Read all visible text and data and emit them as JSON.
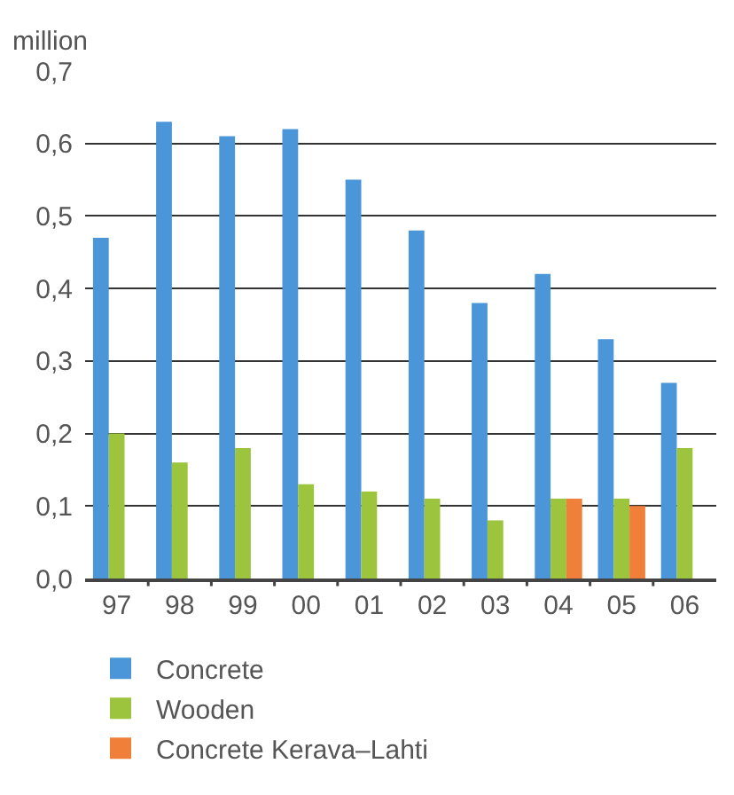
{
  "chart_data": {
    "type": "bar",
    "ylabel": "million",
    "categories": [
      "97",
      "98",
      "99",
      "00",
      "01",
      "02",
      "03",
      "04",
      "05",
      "06"
    ],
    "series": [
      {
        "name": "Concrete",
        "color": "#4a96d8",
        "values": [
          0.47,
          0.63,
          0.61,
          0.62,
          0.55,
          0.48,
          0.38,
          0.42,
          0.33,
          0.27
        ]
      },
      {
        "name": "Wooden",
        "color": "#9cc43c",
        "values": [
          0.2,
          0.16,
          0.18,
          0.13,
          0.12,
          0.11,
          0.08,
          0.11,
          0.11,
          0.18
        ]
      },
      {
        "name": "Concrete Kerava–Lahti",
        "color": "#f07f3a",
        "values": [
          null,
          null,
          null,
          null,
          null,
          null,
          null,
          0.11,
          0.1,
          null
        ]
      }
    ],
    "ylim": [
      0,
      0.7
    ],
    "yticks": [
      {
        "value": 0,
        "label": "0,0"
      },
      {
        "value": 0.1,
        "label": "0,1"
      },
      {
        "value": 0.2,
        "label": "0,2"
      },
      {
        "value": 0.3,
        "label": "0,3"
      },
      {
        "value": 0.4,
        "label": "0,4"
      },
      {
        "value": 0.5,
        "label": "0,5"
      },
      {
        "value": 0.6,
        "label": "0,6"
      },
      {
        "value": 0.7,
        "label": "0,7"
      }
    ],
    "grid": "y",
    "legend": "bottom"
  }
}
